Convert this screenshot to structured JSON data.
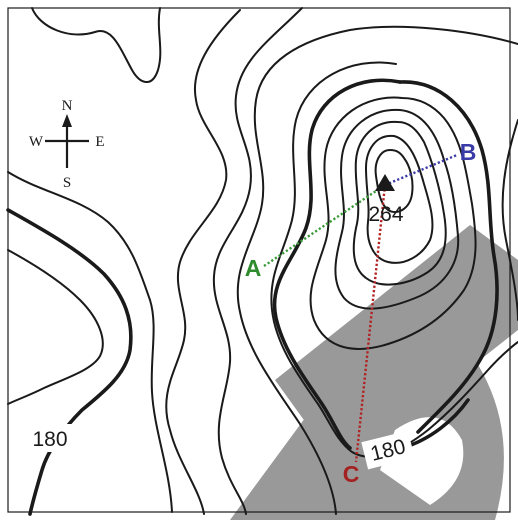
{
  "map": {
    "compass": {
      "north": "N",
      "south": "S",
      "east": "E",
      "west": "W"
    },
    "summit": {
      "elevation": "264",
      "symbol": "triangle-marker-icon"
    },
    "contour_labels": [
      "180",
      "180"
    ],
    "points": [
      {
        "label": "A",
        "color": "#2e8b2e"
      },
      {
        "label": "B",
        "color": "#3b3ba8"
      },
      {
        "label": "C",
        "color": "#a52020"
      }
    ],
    "profile_lines": [
      {
        "from": "A",
        "to": "summit",
        "color": "#3a9a3a",
        "style": "dotted"
      },
      {
        "from": "summit",
        "to": "B",
        "color": "#3b3ba8",
        "style": "dotted"
      },
      {
        "from": "summit",
        "to": "C",
        "color": "#b22222",
        "style": "dotted"
      }
    ],
    "watermark_color": "#808080"
  }
}
